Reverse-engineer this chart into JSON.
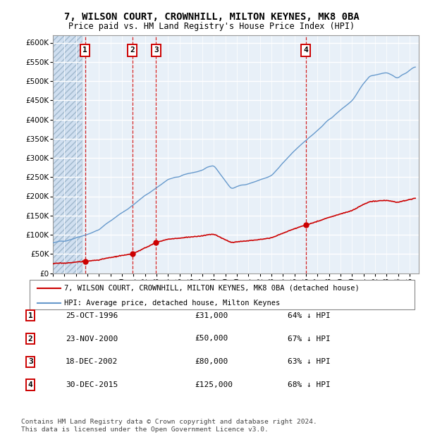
{
  "title1": "7, WILSON COURT, CROWNHILL, MILTON KEYNES, MK8 0BA",
  "title2": "Price paid vs. HM Land Registry's House Price Index (HPI)",
  "sale_prices": [
    31000,
    50000,
    80000,
    125000
  ],
  "sale_labels": [
    "1",
    "2",
    "3",
    "4"
  ],
  "sale_year_floats": [
    1996.81,
    2000.9,
    2002.97,
    2015.99
  ],
  "table_rows": [
    [
      "1",
      "25-OCT-1996",
      "£31,000",
      "64% ↓ HPI"
    ],
    [
      "2",
      "23-NOV-2000",
      "£50,000",
      "67% ↓ HPI"
    ],
    [
      "3",
      "18-DEC-2002",
      "£80,000",
      "63% ↓ HPI"
    ],
    [
      "4",
      "30-DEC-2015",
      "£125,000",
      "68% ↓ HPI"
    ]
  ],
  "legend_line1": "7, WILSON COURT, CROWNHILL, MILTON KEYNES, MK8 0BA (detached house)",
  "legend_line2": "HPI: Average price, detached house, Milton Keynes",
  "footer1": "Contains HM Land Registry data © Crown copyright and database right 2024.",
  "footer2": "This data is licensed under the Open Government Licence v3.0.",
  "hpi_color": "#6699cc",
  "price_color": "#cc0000",
  "bg_color": "#e8f0f8",
  "hatch_color": "#c8d8e8",
  "ylim": [
    0,
    620000
  ],
  "xlim": [
    1994.0,
    2025.8
  ],
  "yticks": [
    0,
    50000,
    100000,
    150000,
    200000,
    250000,
    300000,
    350000,
    400000,
    450000,
    500000,
    550000,
    600000
  ],
  "ytick_labels": [
    "£0",
    "£50K",
    "£100K",
    "£150K",
    "£200K",
    "£250K",
    "£300K",
    "£350K",
    "£400K",
    "£450K",
    "£500K",
    "£550K",
    "£600K"
  ]
}
